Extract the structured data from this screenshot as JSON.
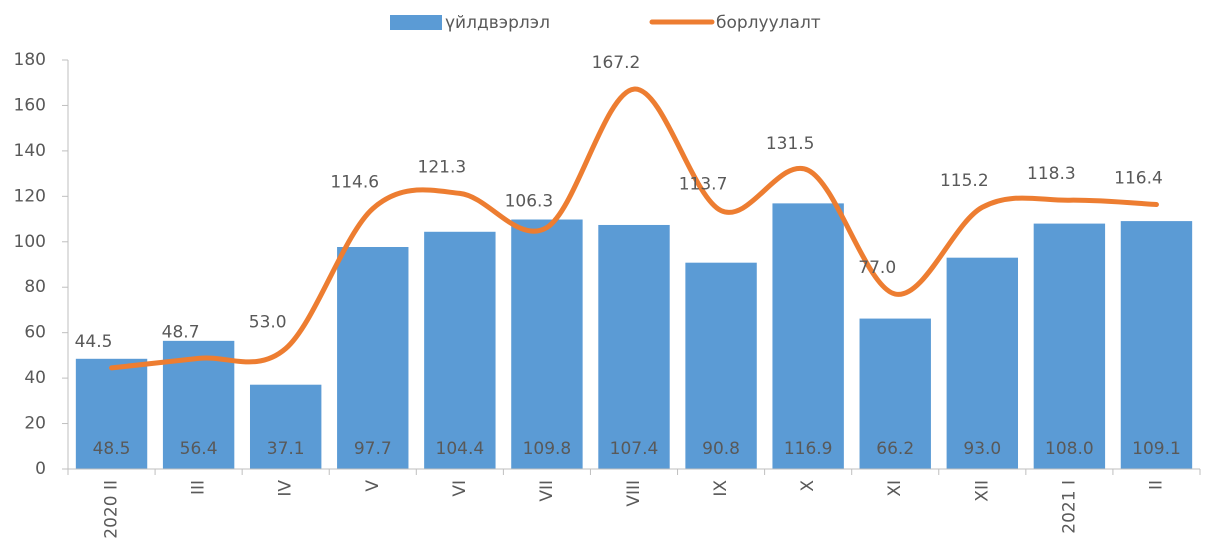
{
  "chart_data": {
    "type": "bar",
    "categories": [
      "2020  II",
      "III",
      "IV",
      "V",
      "VI",
      "VII",
      "VIII",
      "IX",
      "X",
      "XI",
      "XII",
      "2021  I",
      "II"
    ],
    "series": [
      {
        "name": "үйлдвэрлэл",
        "type": "bar",
        "color": "#5b9bd5",
        "values": [
          48.5,
          56.4,
          37.1,
          97.7,
          104.4,
          109.8,
          107.4,
          90.8,
          116.9,
          66.2,
          93.0,
          108.0,
          109.1
        ],
        "value_labels": [
          "48.5",
          "56.4",
          "37.1",
          "97.7",
          "104.4",
          "109.8",
          "107.4",
          "90.8",
          "116.9",
          "66.2",
          "93.0",
          "108.0",
          "109.1"
        ]
      },
      {
        "name": "борлуулалт",
        "type": "line",
        "color": "#ed7d31",
        "values": [
          44.5,
          48.7,
          53.0,
          114.6,
          121.3,
          106.3,
          167.2,
          113.7,
          131.5,
          77.0,
          115.2,
          118.3,
          116.4
        ],
        "value_labels": [
          "44.5",
          "48.7",
          "53.0",
          "114.6",
          "121.3",
          "106.3",
          "167.2",
          "113.7",
          "131.5",
          "77.0",
          "115.2",
          "118.3",
          "116.4"
        ]
      }
    ],
    "ylim": [
      0,
      180
    ],
    "yticks": [
      0,
      20,
      40,
      60,
      80,
      100,
      120,
      140,
      160,
      180
    ],
    "legend": "top"
  }
}
